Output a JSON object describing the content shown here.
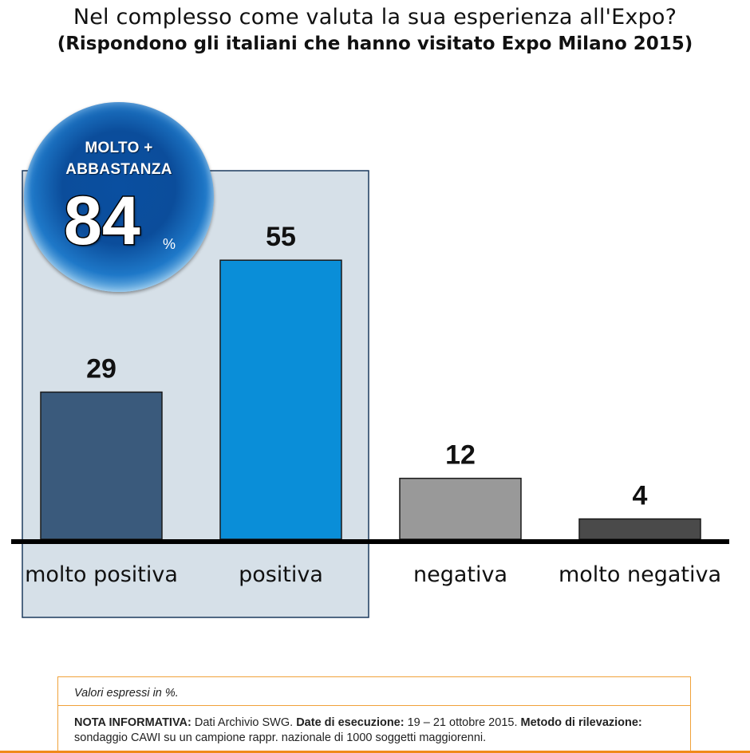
{
  "title": "Nel complesso come valuta la sua esperienza all'Expo?",
  "subtitle": "(Rispondono gli italiani che hanno visitato Expo Milano 2015)",
  "badge": {
    "line1": "MOLTO +",
    "line2": "ABBASTANZA",
    "value": "84",
    "unit": "%"
  },
  "chart_data": {
    "type": "bar",
    "categories": [
      "molto positiva",
      "positiva",
      "negativa",
      "molto negativa"
    ],
    "values": [
      29,
      55,
      12,
      4
    ],
    "value_labels": [
      "29",
      "55",
      "12",
      "4"
    ],
    "title": "",
    "xlabel": "",
    "ylabel": "",
    "ylim": [
      0,
      60
    ],
    "grid": false,
    "colors": [
      "#3a5a7c",
      "#0a8ed8",
      "#999999",
      "#4a4a4a"
    ],
    "highlight_panel_color": "#d6e0e8"
  },
  "note": {
    "units": "Valori espressi in %.",
    "label1": "NOTA INFORMATIVA:",
    "text1": " Dati Archivio SWG. ",
    "label2": "Date di esecuzione:",
    "text2": " 19 – 21 ottobre 2015. ",
    "label3": "Metodo di rilevazione:",
    "text3": " sondaggio CAWI su un campione rappr. nazionale di 1000 soggetti maggiorenni."
  },
  "colors": {
    "accent_orange": "#f08a1a"
  }
}
